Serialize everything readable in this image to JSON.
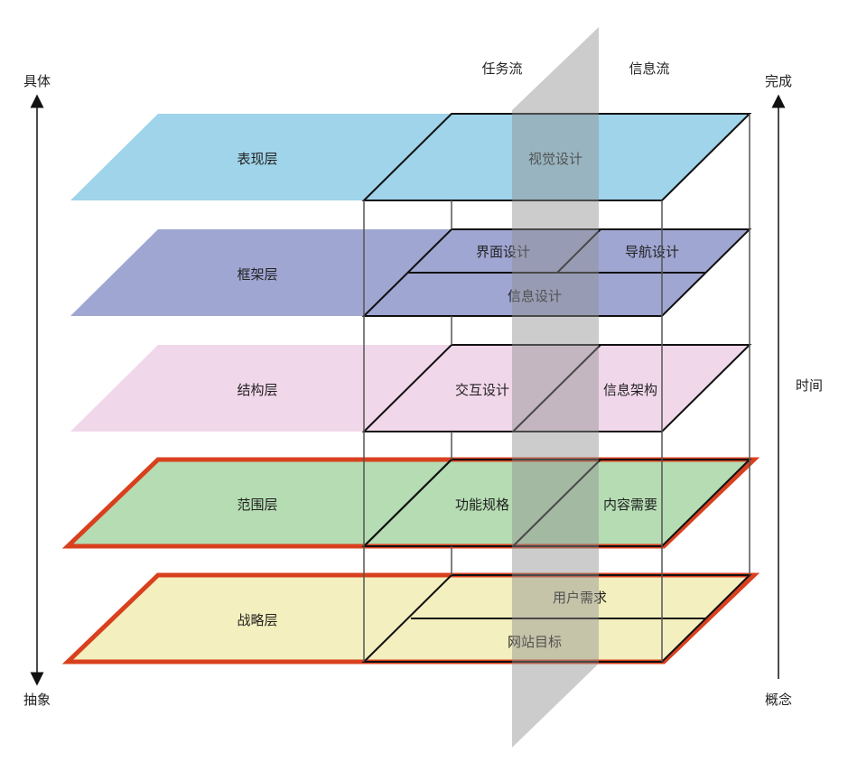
{
  "axis_left": {
    "top": "具体",
    "bottom": "抽象"
  },
  "axis_right": {
    "top": "完成",
    "middle": "时间",
    "bottom": "概念"
  },
  "flows": {
    "task": "任务流",
    "info": "信息流"
  },
  "layers": [
    {
      "name": "表现层",
      "fill": "#9fd4ea",
      "cells": [
        "视觉设计"
      ]
    },
    {
      "name": "框架层",
      "fill": "#9fa6d2",
      "cells": [
        "界面设计",
        "导航设计",
        "信息设计"
      ]
    },
    {
      "name": "结构层",
      "fill": "#f1d7ea",
      "cells": [
        "交互设计",
        "信息架构"
      ]
    },
    {
      "name": "范围层",
      "fill": "#b5dcb2",
      "cells": [
        "功能规格",
        "内容需要"
      ]
    },
    {
      "name": "战略层",
      "fill": "#f3efbe",
      "cells": [
        "用户需求",
        "网站目标"
      ]
    }
  ],
  "colors": {
    "highlight_border": "#d9401e",
    "plane": "#9a9a9a",
    "line": "#111111"
  }
}
